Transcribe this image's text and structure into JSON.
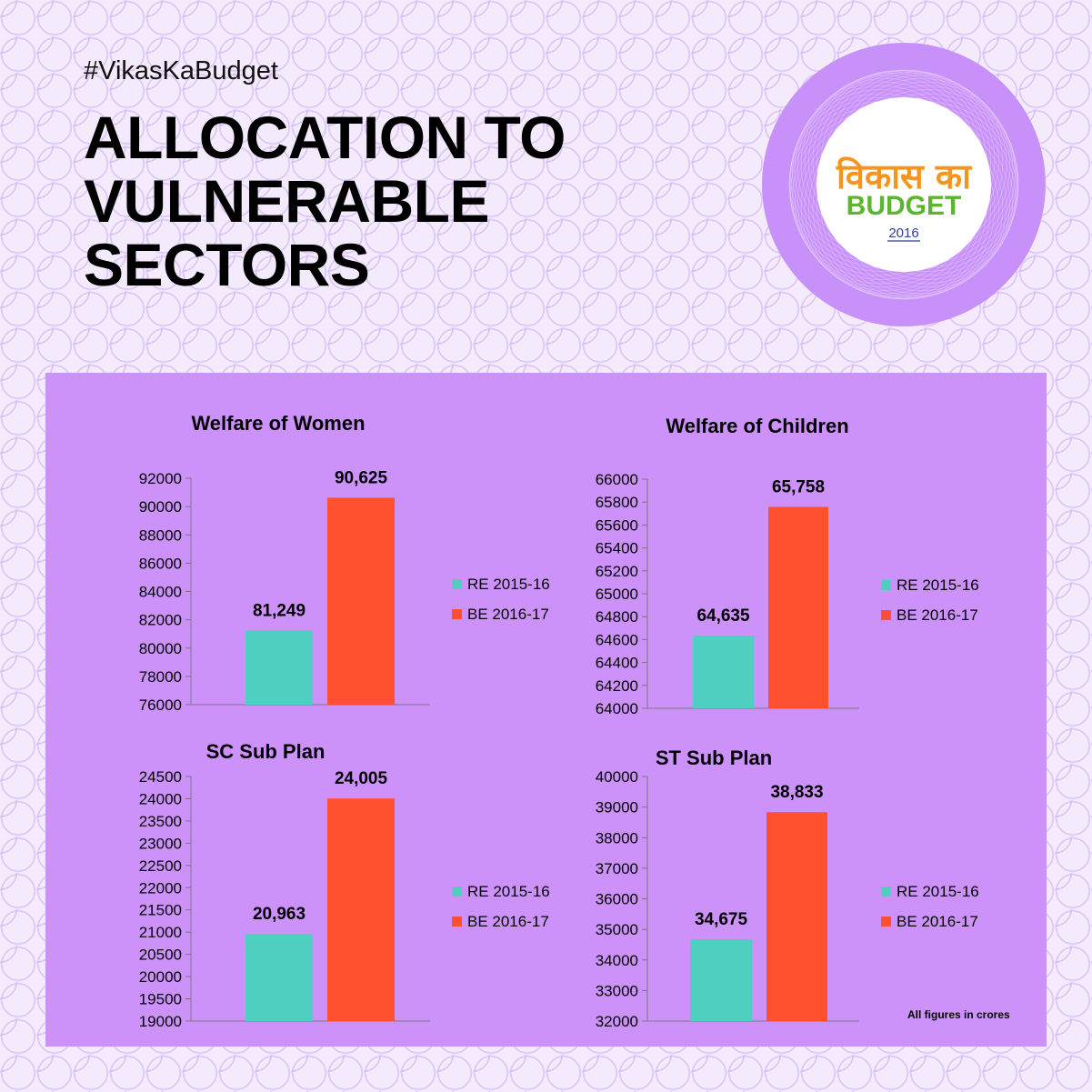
{
  "header": {
    "hashtag": "#VikasKaBudget",
    "title_lines": [
      "ALLOCATION TO",
      "VULNERABLE",
      "SECTORS"
    ]
  },
  "logo": {
    "hindi_text": "विकास का",
    "word": "BUDGET",
    "year": "2016",
    "colors": {
      "ring": "#c891fa",
      "hindi": "#f7941d",
      "word": "#5cb531",
      "year": "#303f8f"
    }
  },
  "colors": {
    "panel": "#cc92fa",
    "series_re": "#4fcfc0",
    "series_be": "#ff5030"
  },
  "legend": [
    "RE 2015-16",
    "BE 2016-17"
  ],
  "footnote": "All figures in crores",
  "chart_data": [
    {
      "type": "bar",
      "title": "Welfare of Women",
      "categories": [
        "RE 2015-16",
        "BE 2016-17"
      ],
      "values": [
        81249,
        90625
      ],
      "data_labels": [
        "81,249",
        "90,625"
      ],
      "ylim": [
        76000,
        92000
      ],
      "yticks": [
        76000,
        78000,
        80000,
        82000,
        84000,
        86000,
        88000,
        90000,
        92000
      ],
      "grid": false,
      "legend_position": "right"
    },
    {
      "type": "bar",
      "title": "Welfare of Children",
      "categories": [
        "RE 2015-16",
        "BE 2016-17"
      ],
      "values": [
        64635,
        65758
      ],
      "data_labels": [
        "64,635",
        "65,758"
      ],
      "ylim": [
        64000,
        66000
      ],
      "yticks": [
        64000,
        64200,
        64400,
        64600,
        64800,
        65000,
        65200,
        65400,
        65600,
        65800,
        66000
      ],
      "grid": false,
      "legend_position": "right"
    },
    {
      "type": "bar",
      "title": "SC Sub Plan",
      "categories": [
        "RE 2015-16",
        "BE 2016-17"
      ],
      "values": [
        20963,
        24005
      ],
      "data_labels": [
        "20,963",
        "24,005"
      ],
      "ylim": [
        19000,
        24500
      ],
      "yticks": [
        19000,
        19500,
        20000,
        20500,
        21000,
        21500,
        22000,
        22500,
        23000,
        23500,
        24000,
        24500
      ],
      "grid": false,
      "legend_position": "right"
    },
    {
      "type": "bar",
      "title": "ST Sub Plan",
      "categories": [
        "RE 2015-16",
        "BE 2016-17"
      ],
      "values": [
        34675,
        38833
      ],
      "data_labels": [
        "34,675",
        "38,833"
      ],
      "ylim": [
        32000,
        40000
      ],
      "yticks": [
        32000,
        33000,
        34000,
        35000,
        36000,
        37000,
        38000,
        39000,
        40000
      ],
      "grid": false,
      "legend_position": "right"
    }
  ]
}
